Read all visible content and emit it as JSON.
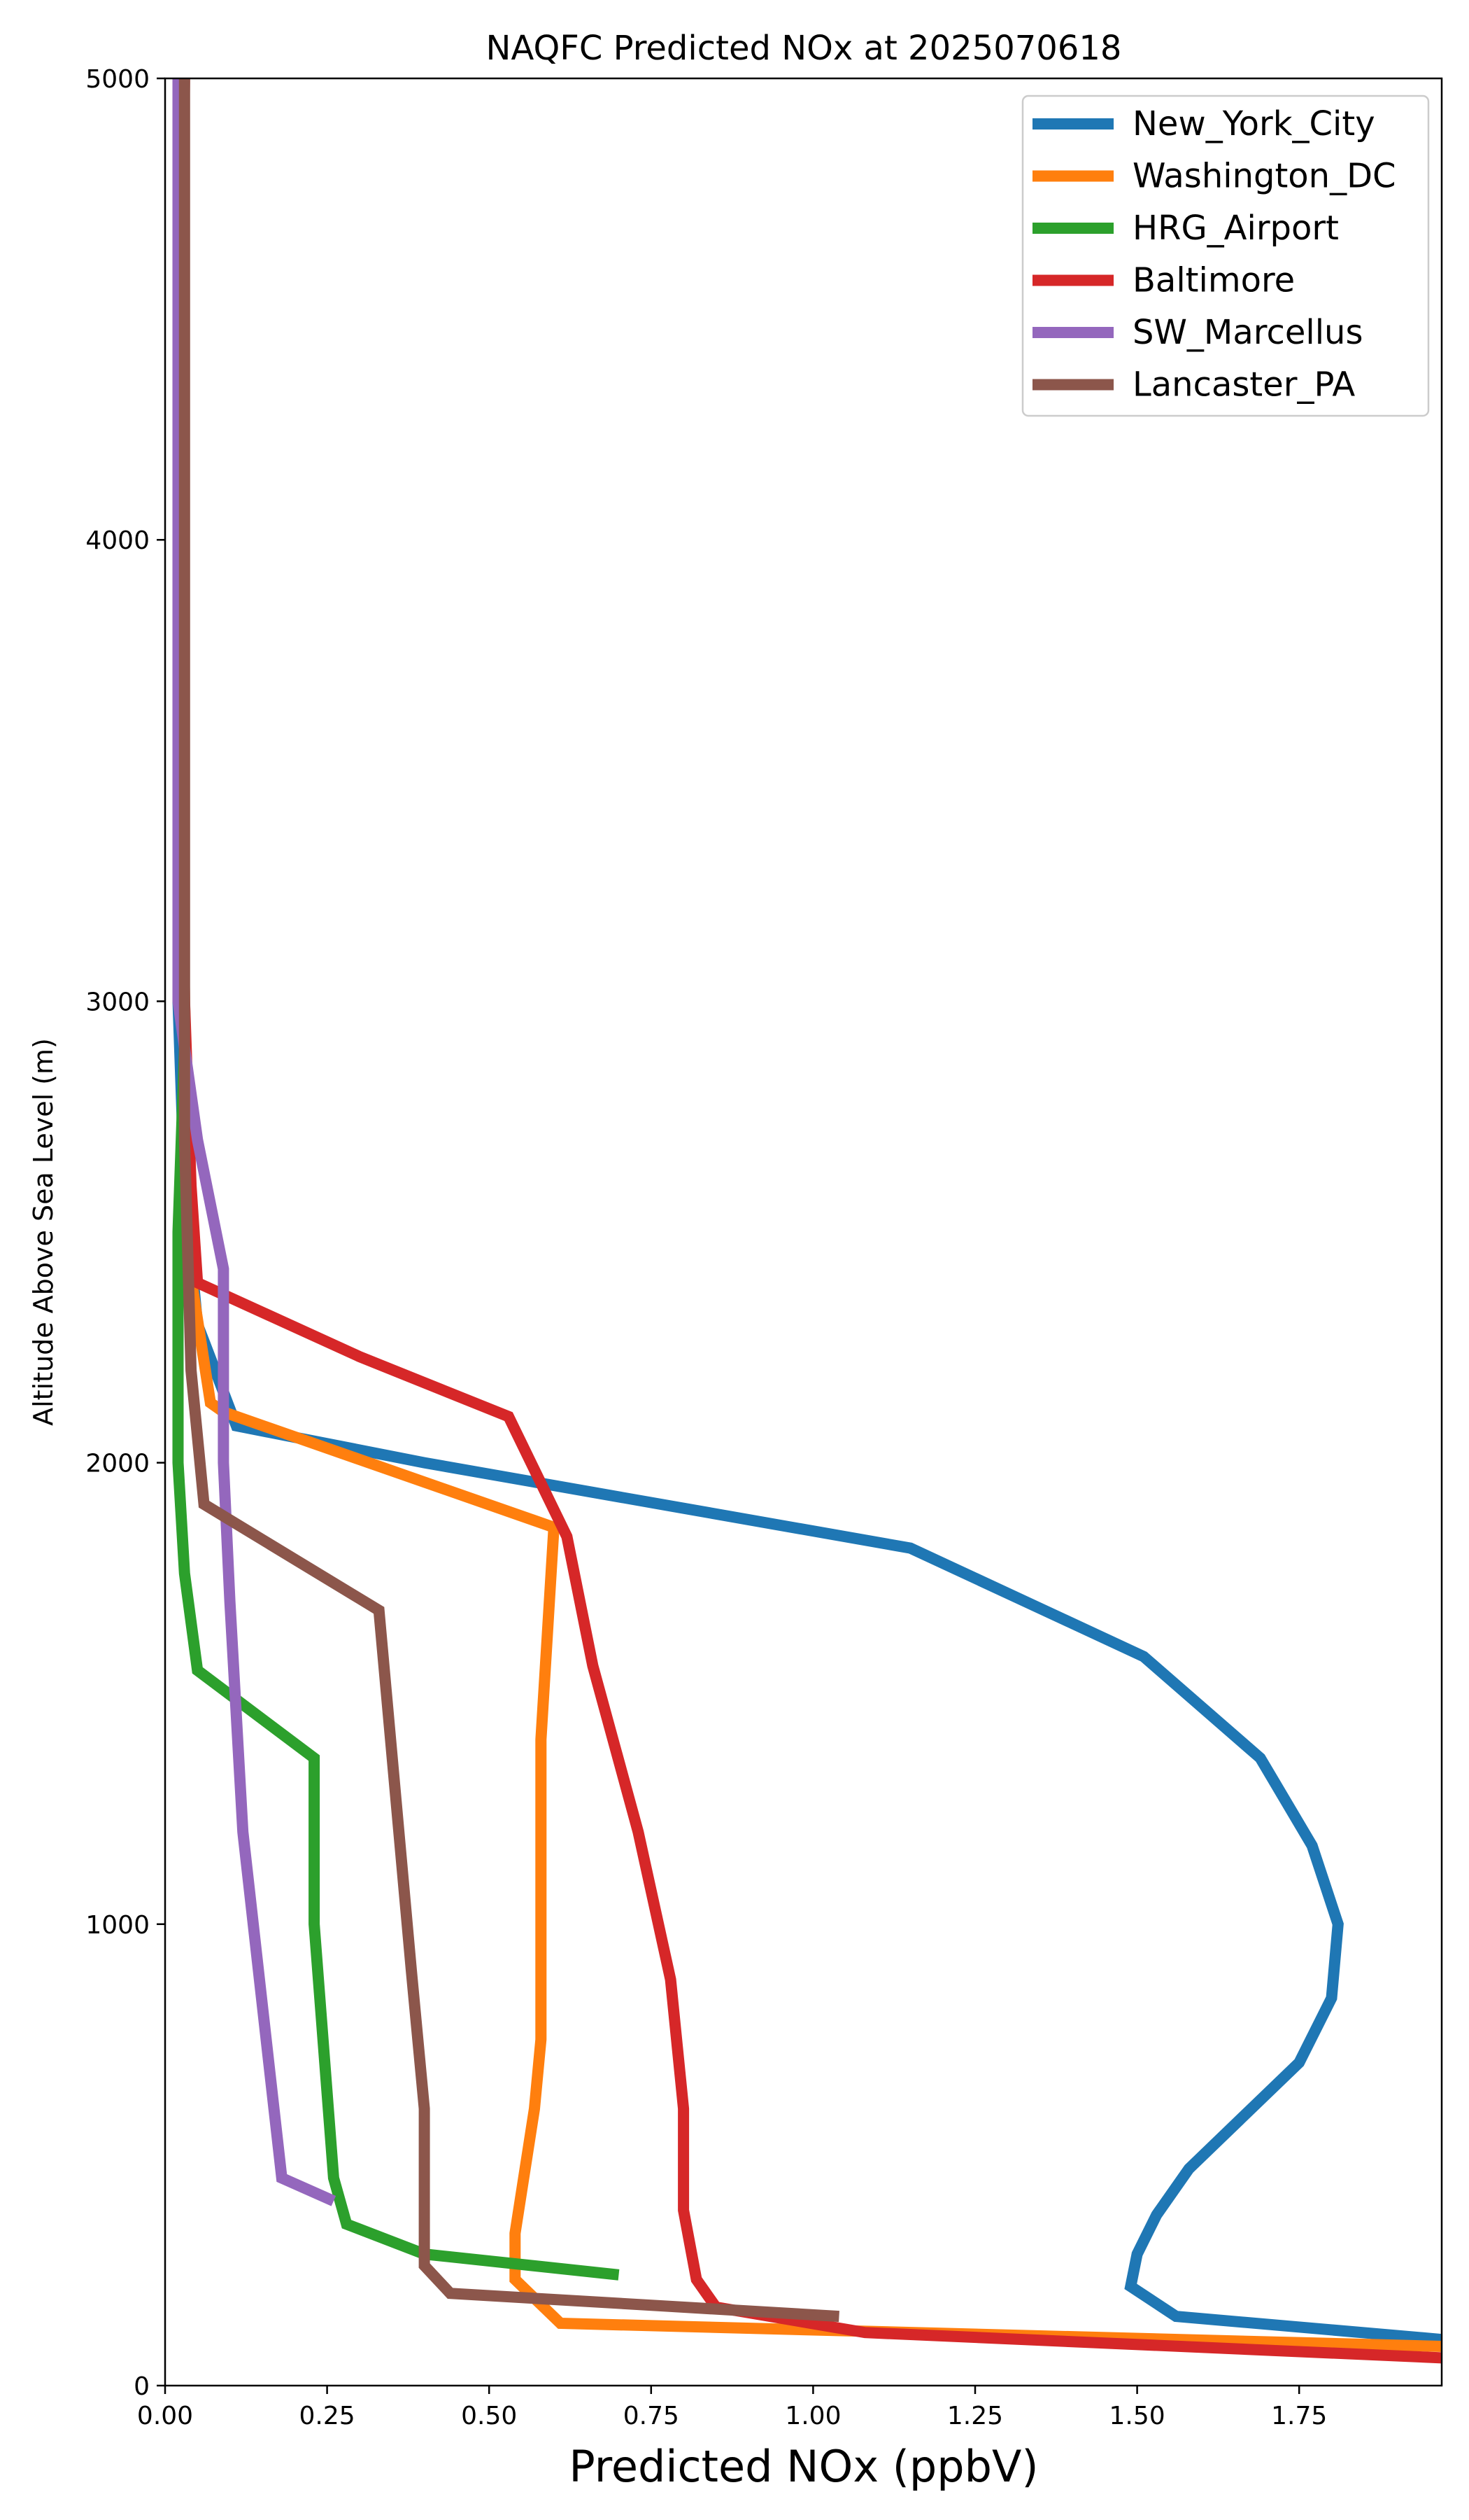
{
  "chart_data": {
    "type": "line",
    "title": "NAQFC Predicted NOx at 2025070618",
    "xlabel": "Predicted NOx (ppbV)",
    "ylabel": "Altitude Above Sea Level (m)",
    "xlim": [
      0,
      1.97
    ],
    "ylim": [
      0,
      5000
    ],
    "x_ticks": [
      0.0,
      0.25,
      0.5,
      0.75,
      1.0,
      1.25,
      1.5,
      1.75
    ],
    "x_tick_labels": [
      "0.00",
      "0.25",
      "0.50",
      "0.75",
      "1.00",
      "1.25",
      "1.50",
      "1.75"
    ],
    "y_ticks": [
      0,
      1000,
      2000,
      3000,
      4000,
      5000
    ],
    "y_tick_labels": [
      "0",
      "1000",
      "2000",
      "3000",
      "4000",
      "5000"
    ],
    "grid": false,
    "legend_position": "top-right",
    "series": [
      {
        "name": "New_York_City",
        "color": "#1f77b4",
        "points": [
          [
            1.97,
            100
          ],
          [
            1.56,
            150
          ],
          [
            1.49,
            215
          ],
          [
            1.5,
            285
          ],
          [
            1.53,
            370
          ],
          [
            1.58,
            470
          ],
          [
            1.75,
            700
          ],
          [
            1.8,
            840
          ],
          [
            1.81,
            1000
          ],
          [
            1.77,
            1170
          ],
          [
            1.69,
            1360
          ],
          [
            1.51,
            1580
          ],
          [
            1.15,
            1815
          ],
          [
            0.4,
            2000
          ],
          [
            0.11,
            2080
          ],
          [
            0.05,
            2300
          ],
          [
            0.03,
            2600
          ],
          [
            0.02,
            3000
          ],
          [
            0.02,
            4000
          ],
          [
            0.02,
            5000
          ]
        ]
      },
      {
        "name": "Washington_DC",
        "color": "#ff7f0e",
        "points": [
          [
            1.97,
            85
          ],
          [
            0.61,
            135
          ],
          [
            0.54,
            230
          ],
          [
            0.54,
            330
          ],
          [
            0.57,
            600
          ],
          [
            0.58,
            750
          ],
          [
            0.58,
            1000
          ],
          [
            0.58,
            1400
          ],
          [
            0.6,
            1860
          ],
          [
            0.09,
            2110
          ],
          [
            0.07,
            2130
          ],
          [
            0.04,
            2400
          ],
          [
            0.03,
            3000
          ],
          [
            0.02,
            4000
          ],
          [
            0.02,
            5000
          ]
        ]
      },
      {
        "name": "HRG_Airport",
        "color": "#2ca02c",
        "points": [
          [
            0.7,
            240
          ],
          [
            0.4,
            285
          ],
          [
            0.28,
            350
          ],
          [
            0.26,
            450
          ],
          [
            0.23,
            1000
          ],
          [
            0.23,
            1360
          ],
          [
            0.05,
            1550
          ],
          [
            0.03,
            1760
          ],
          [
            0.02,
            2000
          ],
          [
            0.02,
            2500
          ],
          [
            0.03,
            2900
          ],
          [
            0.02,
            4000
          ],
          [
            0.02,
            5000
          ]
        ]
      },
      {
        "name": "Baltimore",
        "color": "#d62728",
        "points": [
          [
            1.97,
            60
          ],
          [
            1.08,
            115
          ],
          [
            0.85,
            170
          ],
          [
            0.82,
            230
          ],
          [
            0.8,
            380
          ],
          [
            0.8,
            600
          ],
          [
            0.78,
            880
          ],
          [
            0.73,
            1200
          ],
          [
            0.66,
            1560
          ],
          [
            0.62,
            1840
          ],
          [
            0.53,
            2100
          ],
          [
            0.3,
            2230
          ],
          [
            0.05,
            2390
          ],
          [
            0.04,
            2600
          ],
          [
            0.03,
            3000
          ],
          [
            0.02,
            4000
          ],
          [
            0.03,
            5000
          ]
        ]
      },
      {
        "name": "SW_Marcellus",
        "color": "#9467bd",
        "points": [
          [
            0.26,
            400
          ],
          [
            0.18,
            450
          ],
          [
            0.16,
            700
          ],
          [
            0.12,
            1200
          ],
          [
            0.1,
            1700
          ],
          [
            0.09,
            2000
          ],
          [
            0.09,
            2420
          ],
          [
            0.05,
            2700
          ],
          [
            0.02,
            3000
          ],
          [
            0.02,
            3500
          ],
          [
            0.02,
            4000
          ],
          [
            0.02,
            5000
          ]
        ]
      },
      {
        "name": "Lancaster_PA",
        "color": "#8c564b",
        "points": [
          [
            1.04,
            150
          ],
          [
            0.44,
            200
          ],
          [
            0.4,
            260
          ],
          [
            0.4,
            450
          ],
          [
            0.4,
            600
          ],
          [
            0.38,
            900
          ],
          [
            0.33,
            1680
          ],
          [
            0.06,
            1910
          ],
          [
            0.04,
            2200
          ],
          [
            0.03,
            2700
          ],
          [
            0.03,
            3500
          ],
          [
            0.03,
            4500
          ],
          [
            0.03,
            5000
          ]
        ]
      }
    ]
  }
}
